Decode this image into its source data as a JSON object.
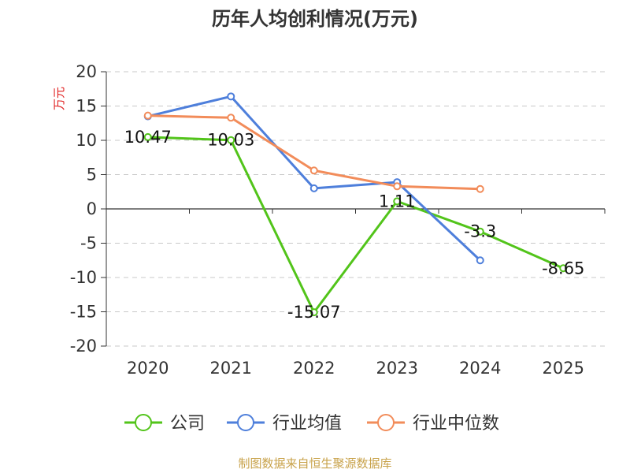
{
  "chart_data": {
    "type": "line",
    "title": "历年人均创利情况(万元)",
    "ylabel": "万元",
    "xlabel": "",
    "categories": [
      "2020",
      "2021",
      "2022",
      "2023",
      "2024",
      "2025"
    ],
    "ylim": [
      -20,
      20
    ],
    "yticks": [
      20,
      15,
      10,
      5,
      0,
      -5,
      -10,
      -15,
      -20
    ],
    "grid": true,
    "legend_position": "bottom",
    "series": [
      {
        "name": "公司",
        "color": "#52c41a",
        "values": [
          10.47,
          10.03,
          -15.07,
          1.11,
          -3.3,
          -8.65
        ],
        "labels": [
          "10.47",
          "10.03",
          "-15.07",
          "1.11",
          "-3.3",
          "-8.65"
        ]
      },
      {
        "name": "行业均值",
        "color": "#4e7fdb",
        "values": [
          13.5,
          16.4,
          3.0,
          3.9,
          -7.5,
          null
        ]
      },
      {
        "name": "行业中位数",
        "color": "#f28c5a",
        "values": [
          13.6,
          13.3,
          5.6,
          3.3,
          2.9,
          null
        ]
      }
    ]
  },
  "source": "制图数据来自恒生聚源数据库"
}
